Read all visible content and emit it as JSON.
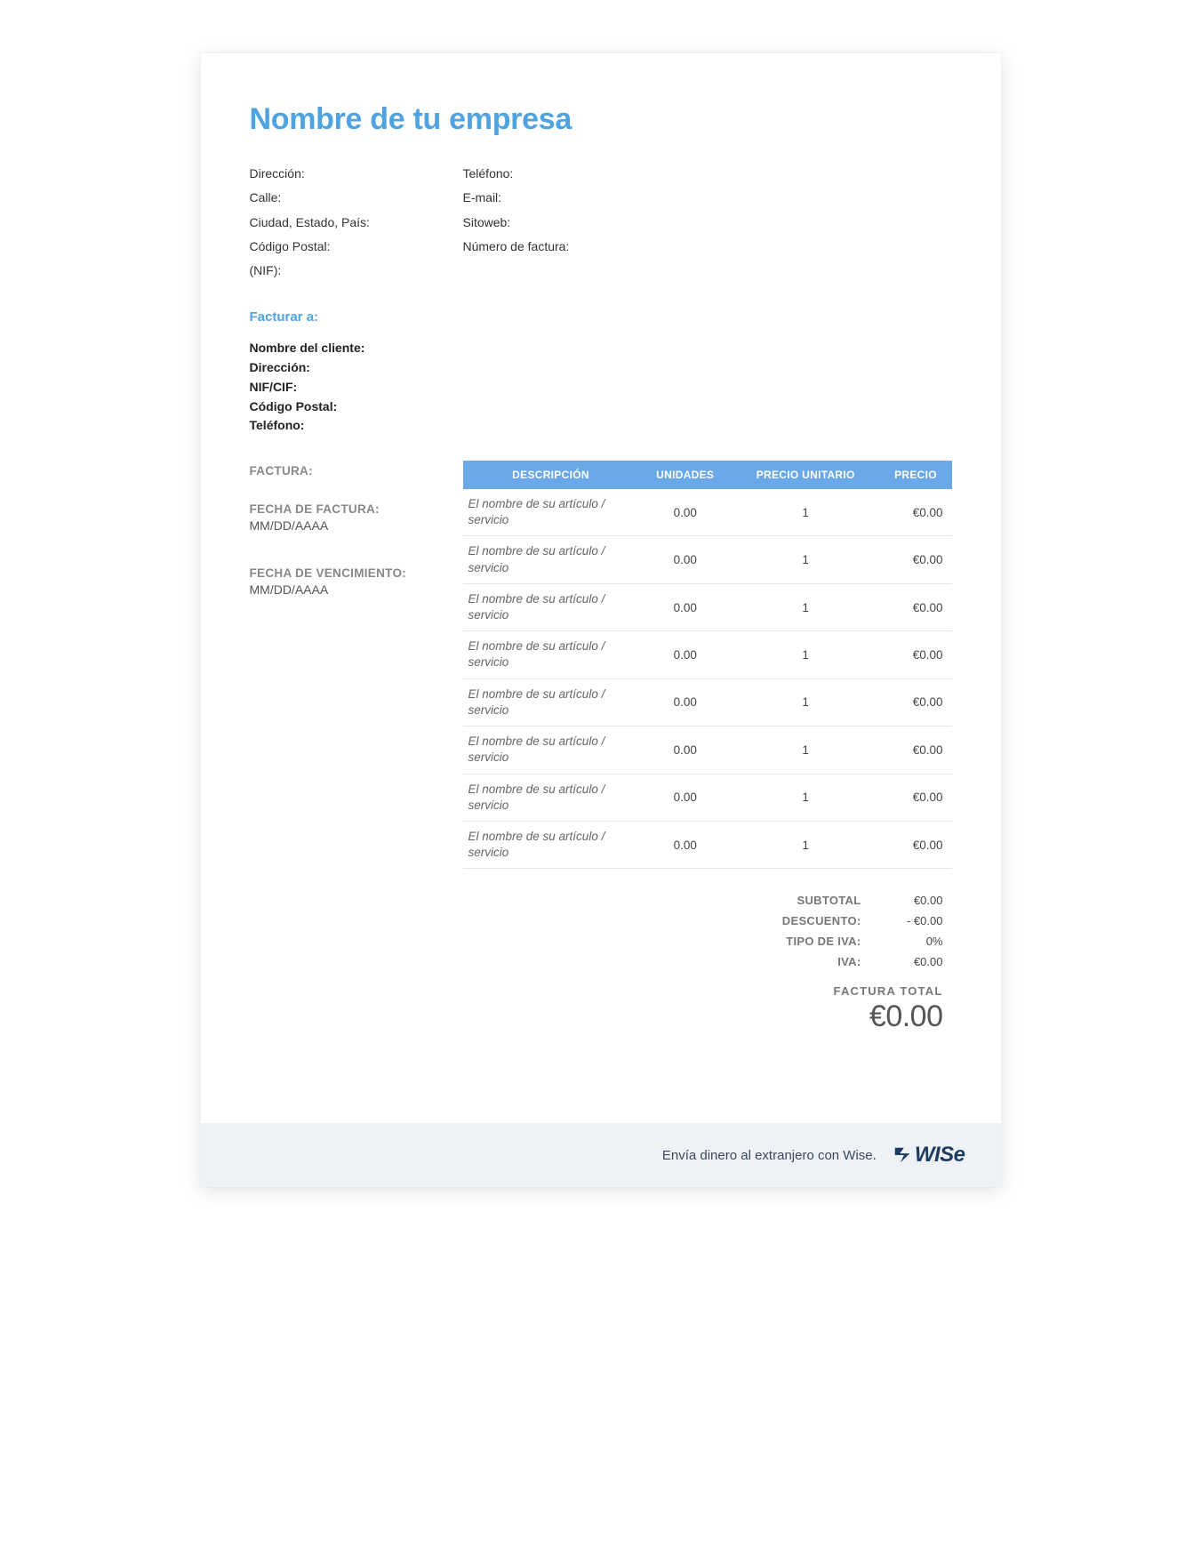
{
  "company": {
    "title": "Nombre de tu empresa",
    "left": {
      "address": "Dirección:",
      "street": "Calle:",
      "city": "Ciudad, Estado, País:",
      "postal": "Código Postal:",
      "nif": "(NIF):"
    },
    "right": {
      "phone": "Teléfono:",
      "email": "E-mail:",
      "site": "Sitoweb:",
      "invoice_no": "Número de factura:"
    }
  },
  "bill_to": {
    "title": "Facturar a:",
    "client": "Nombre del cliente:",
    "address": "Dirección:",
    "nif": "NIF/CIF:",
    "postal": "Código Postal:",
    "phone": "Teléfono:"
  },
  "meta": {
    "invoice_label": "FACTURA:",
    "date_label": "FECHA DE FACTURA:",
    "date_value": "MM/DD/AAAA",
    "due_label": "FECHA DE VENCIMIENTO:",
    "due_value": "MM/DD/AAAA"
  },
  "table": {
    "headers": {
      "desc": "DESCRIPCIÓN",
      "units": "UNIDADES",
      "unit_price": "PRECIO UNITARIO",
      "price": "PRECIO"
    },
    "rows": [
      {
        "desc": "El nombre de su artículo / servicio",
        "units": "0.00",
        "unit_price": "1",
        "price": "€0.00"
      },
      {
        "desc": "El nombre de su artículo / servicio",
        "units": "0.00",
        "unit_price": "1",
        "price": "€0.00"
      },
      {
        "desc": "El nombre de su artículo / servicio",
        "units": "0.00",
        "unit_price": "1",
        "price": "€0.00"
      },
      {
        "desc": "El nombre de su artículo / servicio",
        "units": "0.00",
        "unit_price": "1",
        "price": "€0.00"
      },
      {
        "desc": "El nombre de su artículo / servicio",
        "units": "0.00",
        "unit_price": "1",
        "price": "€0.00"
      },
      {
        "desc": "El nombre de su artículo / servicio",
        "units": "0.00",
        "unit_price": "1",
        "price": "€0.00"
      },
      {
        "desc": "El nombre de su artículo / servicio",
        "units": "0.00",
        "unit_price": "1",
        "price": "€0.00"
      },
      {
        "desc": "El nombre de su artículo / servicio",
        "units": "0.00",
        "unit_price": "1",
        "price": "€0.00"
      }
    ]
  },
  "totals": {
    "subtotal_label": "SUBTOTAL",
    "subtotal_value": "€0.00",
    "discount_label": "DESCUENTO:",
    "discount_value": "- €0.00",
    "vat_rate_label": "TIPO DE IVA:",
    "vat_rate_value": "0%",
    "vat_label": "IVA:",
    "vat_value": "€0.00",
    "grand_label": "FACTURA  TOTAL",
    "grand_value": "€0.00"
  },
  "footer": {
    "text": "Envía dinero al extranjero con Wise.",
    "brand": "WISe"
  },
  "colors": {
    "accent": "#4ea3e0",
    "table_header_bg": "#6aa8e8",
    "footer_bg": "#eef1f5",
    "brand": "#1d3a5f"
  }
}
